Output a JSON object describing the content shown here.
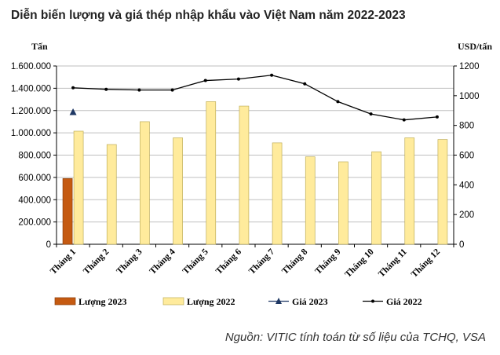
{
  "title": "Diễn biến lượng và giá thép nhập khẩu vào Việt Nam năm 2022-2023",
  "source": "Nguồn: VITIC tính toán từ số liệu của TCHQ, VSA",
  "chart_data": {
    "type": "bar",
    "categories": [
      "Tháng 1",
      "Tháng 2",
      "Tháng 3",
      "Tháng 4",
      "Tháng 5",
      "Tháng 6",
      "Tháng 7",
      "Tháng 8",
      "Tháng 9",
      "Tháng 10",
      "Tháng 11",
      "Tháng 12"
    ],
    "left_axis": {
      "label": "Tấn",
      "ylim": [
        0,
        1600000
      ],
      "ticks": [
        "0",
        "200.000",
        "400.000",
        "600.000",
        "800.000",
        "1.000.000",
        "1.200.000",
        "1.400.000",
        "1.600.000"
      ]
    },
    "right_axis": {
      "label": "USD/tấn",
      "ylim": [
        0,
        1200
      ],
      "ticks": [
        "0",
        "200",
        "400",
        "600",
        "800",
        "1000",
        "1200"
      ]
    },
    "series": [
      {
        "name": "Lượng 2023",
        "kind": "bar",
        "axis": "left",
        "color": "#c55a11",
        "values": [
          590000,
          null,
          null,
          null,
          null,
          null,
          null,
          null,
          null,
          null,
          null,
          null
        ]
      },
      {
        "name": "Lượng 2022",
        "kind": "bar",
        "axis": "left",
        "color": "#ffeb9c",
        "values": [
          1015000,
          895000,
          1100000,
          955000,
          1280000,
          1240000,
          910000,
          785000,
          740000,
          830000,
          955000,
          940000
        ]
      },
      {
        "name": "Giá 2023",
        "kind": "line",
        "axis": "right",
        "color": "#1f3864",
        "marker": "triangle",
        "values": [
          888,
          null,
          null,
          null,
          null,
          null,
          null,
          null,
          null,
          null,
          null,
          null
        ]
      },
      {
        "name": "Giá 2022",
        "kind": "line",
        "axis": "right",
        "color": "#000000",
        "marker": "dot",
        "values": [
          1053,
          1043,
          1038,
          1038,
          1102,
          1112,
          1138,
          1080,
          960,
          877,
          837,
          857
        ]
      }
    ],
    "grid": true,
    "legend_position": "bottom"
  }
}
